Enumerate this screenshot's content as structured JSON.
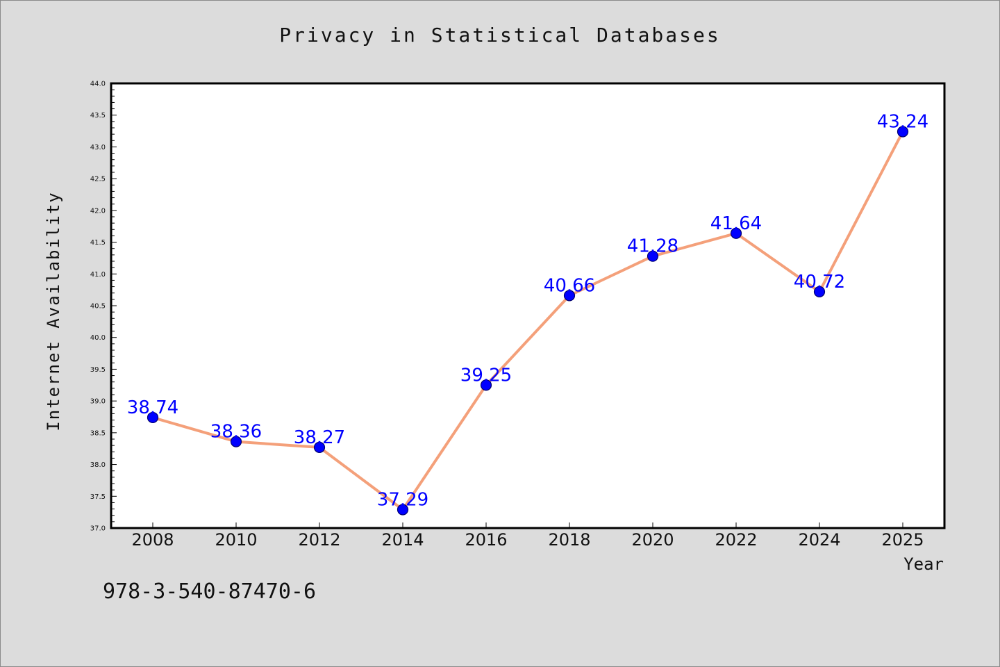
{
  "chart_data": {
    "type": "line",
    "title": "Privacy in Statistical Databases",
    "xlabel": "Year",
    "ylabel": "Internet Availability",
    "categories": [
      "2008",
      "2010",
      "2012",
      "2014",
      "2016",
      "2018",
      "2020",
      "2022",
      "2024",
      "2025"
    ],
    "series": [
      {
        "values": [
          38.74,
          38.36,
          38.27,
          37.29,
          39.25,
          40.66,
          41.28,
          41.64,
          40.72,
          43.24
        ],
        "data_labels": [
          "38.74",
          "38.36",
          "38.27",
          "37.29",
          "39.25",
          "40.66",
          "41.28",
          "41.64",
          "40.72",
          "43.24"
        ]
      }
    ],
    "ylim": [
      37.0,
      44.0
    ],
    "yticks": [
      "37.0",
      "37.5",
      "38.0",
      "38.5",
      "39.0",
      "39.5",
      "40.0",
      "40.5",
      "41.0",
      "41.5",
      "42.0",
      "42.5",
      "43.0",
      "43.5",
      "44.0"
    ],
    "grid": false,
    "colors": {
      "line": "#f4a07a",
      "marker": "#0000ff",
      "label": "#0000ff",
      "background": "#dcdcdc",
      "plot_area": "#ffffff"
    }
  },
  "footer": {
    "isbn": "978-3-540-87470-6"
  }
}
